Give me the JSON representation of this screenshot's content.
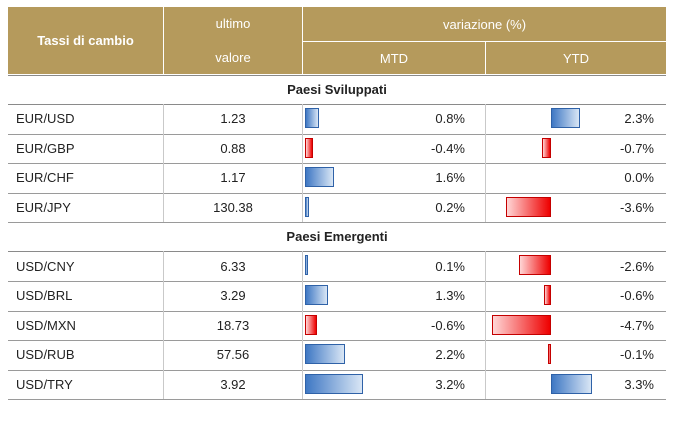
{
  "header": {
    "col1": "Tassi di cambio",
    "col2_line1": "ultimo",
    "col2_line2": "valore",
    "variation": "variazione (%)",
    "mtd": "MTD",
    "ytd": "YTD"
  },
  "sections": [
    {
      "title": "Paesi Sviluppati",
      "rows": [
        {
          "pair": "EUR/USD",
          "value": "1.23",
          "mtd": "0.8%",
          "ytd": "2.3%",
          "mtd_num": 0.8,
          "ytd_num": 2.3
        },
        {
          "pair": "EUR/GBP",
          "value": "0.88",
          "mtd": "-0.4%",
          "ytd": "-0.7%",
          "mtd_num": -0.4,
          "ytd_num": -0.7
        },
        {
          "pair": "EUR/CHF",
          "value": "1.17",
          "mtd": "1.6%",
          "ytd": "0.0%",
          "mtd_num": 1.6,
          "ytd_num": 0.0
        },
        {
          "pair": "EUR/JPY",
          "value": "130.38",
          "mtd": "0.2%",
          "ytd": "-3.6%",
          "mtd_num": 0.2,
          "ytd_num": -3.6
        }
      ]
    },
    {
      "title": "Paesi Emergenti",
      "rows": [
        {
          "pair": "USD/CNY",
          "value": "6.33",
          "mtd": "0.1%",
          "ytd": "-2.6%",
          "mtd_num": 0.1,
          "ytd_num": -2.6
        },
        {
          "pair": "USD/BRL",
          "value": "3.29",
          "mtd": "1.3%",
          "ytd": "-0.6%",
          "mtd_num": 1.3,
          "ytd_num": -0.6
        },
        {
          "pair": "USD/MXN",
          "value": "18.73",
          "mtd": "-0.6%",
          "ytd": "-4.7%",
          "mtd_num": -0.6,
          "ytd_num": -4.7
        },
        {
          "pair": "USD/RUB",
          "value": "57.56",
          "mtd": "2.2%",
          "ytd": "-0.1%",
          "mtd_num": 2.2,
          "ytd_num": -0.1
        },
        {
          "pair": "USD/TRY",
          "value": "3.92",
          "mtd": "3.2%",
          "ytd": "3.3%",
          "mtd_num": 3.2,
          "ytd_num": 3.3
        }
      ]
    }
  ],
  "colors": {
    "header_bg": "#b59a5c",
    "positive_bar": "#3f78c4",
    "negative_bar": "#ee0000"
  }
}
